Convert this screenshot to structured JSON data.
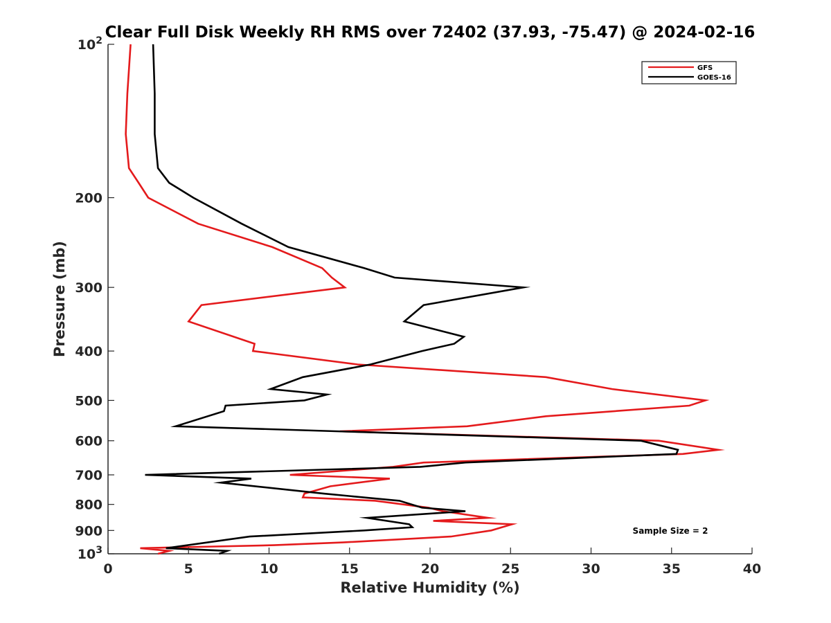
{
  "chart_data": {
    "type": "line",
    "title": "Clear Full Disk Weekly RH RMS over 72402 (37.93, -75.47) @ 2024-02-16",
    "xlabel": "Relative Humidity (%)",
    "ylabel": "Pressure (mb)",
    "xlim": [
      0,
      40
    ],
    "ylim": [
      100,
      1000
    ],
    "yscale": "log",
    "y_reversed": true,
    "xticks": [
      0,
      5,
      10,
      15,
      20,
      25,
      30,
      35,
      40
    ],
    "yticks": [
      100,
      200,
      300,
      400,
      500,
      600,
      700,
      800,
      900,
      1000
    ],
    "yticklabels": {
      "100": {
        "base": "10",
        "exp": "2"
      },
      "200": "200",
      "300": "300",
      "400": "400",
      "500": "500",
      "600": "600",
      "700": "700",
      "800": "800",
      "900": "900",
      "1000": {
        "base": "10",
        "exp": "3"
      }
    },
    "grid": false,
    "legend_position": "top-right",
    "series": [
      {
        "name": "GFS",
        "color": "#e41a1c",
        "points": [
          [
            1.4,
            100
          ],
          [
            1.2,
            125
          ],
          [
            1.1,
            150
          ],
          [
            1.3,
            175
          ],
          [
            1.9,
            187
          ],
          [
            2.5,
            200
          ],
          [
            5.6,
            225
          ],
          [
            10.2,
            250
          ],
          [
            13.3,
            275
          ],
          [
            13.9,
            287
          ],
          [
            14.7,
            300
          ],
          [
            5.8,
            325
          ],
          [
            5.0,
            350
          ],
          [
            9.1,
            387
          ],
          [
            9.0,
            400
          ],
          [
            15.5,
            425
          ],
          [
            27.2,
            450
          ],
          [
            31.3,
            475
          ],
          [
            37.1,
            500
          ],
          [
            36.1,
            512
          ],
          [
            27.2,
            537
          ],
          [
            22.3,
            562
          ],
          [
            14.4,
            575
          ],
          [
            34.2,
            600
          ],
          [
            37.9,
            625
          ],
          [
            35.7,
            637
          ],
          [
            19.6,
            662
          ],
          [
            17.7,
            675
          ],
          [
            11.3,
            700
          ],
          [
            17.5,
            712
          ],
          [
            13.8,
            737
          ],
          [
            12.2,
            762
          ],
          [
            12.1,
            775
          ],
          [
            16.6,
            787
          ],
          [
            19.9,
            812
          ],
          [
            20.8,
            825
          ],
          [
            23.6,
            850
          ],
          [
            20.2,
            862
          ],
          [
            25.1,
            875
          ],
          [
            23.8,
            900
          ],
          [
            21.3,
            925
          ],
          [
            14.6,
            950
          ],
          [
            10.3,
            962
          ],
          [
            2.0,
            975
          ],
          [
            3.8,
            987
          ],
          [
            3.1,
            1000
          ]
        ]
      },
      {
        "name": "GOES-16",
        "color": "#000000",
        "points": [
          [
            2.8,
            100
          ],
          [
            2.9,
            125
          ],
          [
            2.9,
            150
          ],
          [
            3.1,
            175
          ],
          [
            3.8,
            187
          ],
          [
            5.3,
            200
          ],
          [
            8.3,
            225
          ],
          [
            11.2,
            250
          ],
          [
            15.9,
            275
          ],
          [
            17.8,
            287
          ],
          [
            25.8,
            300
          ],
          [
            19.6,
            325
          ],
          [
            18.4,
            350
          ],
          [
            22.1,
            375
          ],
          [
            21.5,
            387
          ],
          [
            19.5,
            400
          ],
          [
            16.3,
            425
          ],
          [
            12.1,
            450
          ],
          [
            10.1,
            475
          ],
          [
            13.6,
            487
          ],
          [
            12.2,
            500
          ],
          [
            7.3,
            512
          ],
          [
            7.2,
            525
          ],
          [
            4.2,
            562
          ],
          [
            33.1,
            600
          ],
          [
            35.4,
            625
          ],
          [
            35.3,
            637
          ],
          [
            22.2,
            662
          ],
          [
            19.4,
            675
          ],
          [
            2.3,
            700
          ],
          [
            8.9,
            712
          ],
          [
            7.0,
            725
          ],
          [
            13.4,
            762
          ],
          [
            18.1,
            787
          ],
          [
            19.5,
            812
          ],
          [
            22.2,
            825
          ],
          [
            16.1,
            850
          ],
          [
            18.7,
            875
          ],
          [
            18.9,
            887
          ],
          [
            15.9,
            900
          ],
          [
            8.8,
            925
          ],
          [
            3.6,
            975
          ],
          [
            7.4,
            987
          ],
          [
            6.9,
            1000
          ]
        ]
      }
    ],
    "annotations": [
      {
        "text": "Sample Size = 2",
        "position": "bottom-right"
      }
    ]
  }
}
